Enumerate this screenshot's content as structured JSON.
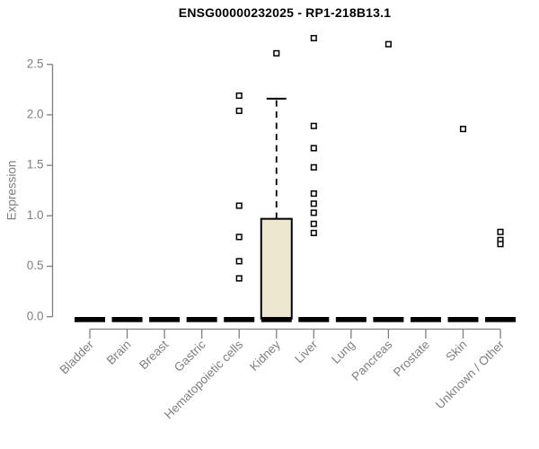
{
  "chart_data": {
    "type": "boxplot",
    "title": "ENSG00000232025 - RP1-218B13.1",
    "ylabel": "Expression",
    "xlabel": "",
    "ylim": [
      0,
      2.8
    ],
    "ytick_labels": [
      "0.0",
      "0.5",
      "1.0",
      "1.5",
      "2.0",
      "2.5"
    ],
    "ytick_values": [
      0,
      0.5,
      1.0,
      1.5,
      2.0,
      2.5
    ],
    "grid": false,
    "legend": false,
    "categories": [
      "Bladder",
      "Brain",
      "Breast",
      "Gastric",
      "Hematopoietic cells",
      "Kidney",
      "Liver",
      "Lung",
      "Pancreas",
      "Prostate",
      "Skin",
      "Unknown / Other"
    ],
    "series": [
      {
        "category": "Bladder",
        "q1": 0,
        "median": 0,
        "q3": 0,
        "whisker_low": 0,
        "whisker_high": 0,
        "outliers": []
      },
      {
        "category": "Brain",
        "q1": 0,
        "median": 0,
        "q3": 0,
        "whisker_low": 0,
        "whisker_high": 0,
        "outliers": []
      },
      {
        "category": "Breast",
        "q1": 0,
        "median": 0,
        "q3": 0,
        "whisker_low": 0,
        "whisker_high": 0,
        "outliers": []
      },
      {
        "category": "Gastric",
        "q1": 0,
        "median": 0,
        "q3": 0,
        "whisker_low": 0,
        "whisker_high": 0,
        "outliers": []
      },
      {
        "category": "Hematopoietic cells",
        "q1": 0,
        "median": 0,
        "q3": 0,
        "whisker_low": 0,
        "whisker_high": 0,
        "outliers": [
          2.19,
          2.04,
          1.1,
          0.79,
          0.55,
          0.38
        ]
      },
      {
        "category": "Kidney",
        "q1": 0,
        "median": 0,
        "q3": 0.97,
        "whisker_low": 0,
        "whisker_high": 2.16,
        "outliers": [
          2.61
        ]
      },
      {
        "category": "Liver",
        "q1": 0,
        "median": 0,
        "q3": 0,
        "whisker_low": 0,
        "whisker_high": 0,
        "outliers": [
          2.76,
          1.89,
          1.67,
          1.48,
          1.22,
          1.12,
          1.03,
          0.92,
          0.83
        ]
      },
      {
        "category": "Lung",
        "q1": 0,
        "median": 0,
        "q3": 0,
        "whisker_low": 0,
        "whisker_high": 0,
        "outliers": []
      },
      {
        "category": "Pancreas",
        "q1": 0,
        "median": 0,
        "q3": 0,
        "whisker_low": 0,
        "whisker_high": 0,
        "outliers": [
          2.7
        ]
      },
      {
        "category": "Prostate",
        "q1": 0,
        "median": 0,
        "q3": 0,
        "whisker_low": 0,
        "whisker_high": 0,
        "outliers": []
      },
      {
        "category": "Skin",
        "q1": 0,
        "median": 0,
        "q3": 0,
        "whisker_low": 0,
        "whisker_high": 0,
        "outliers": [
          1.86
        ]
      },
      {
        "category": "Unknown / Other",
        "q1": 0,
        "median": 0,
        "q3": 0,
        "whisker_low": 0,
        "whisker_high": 0,
        "outliers": [
          0.84,
          0.76,
          0.72
        ]
      }
    ],
    "colors": {
      "box_fill": "#ece7cd",
      "box_border": "#000000",
      "median": "#000000",
      "whisker": "#000000",
      "outlier_stroke": "#000000",
      "outlier_fill": "#ffffff",
      "axis": "#7f7f7f",
      "tick_text": "#7f7f7f",
      "title_text": "#000000",
      "background": "#ffffff"
    }
  }
}
